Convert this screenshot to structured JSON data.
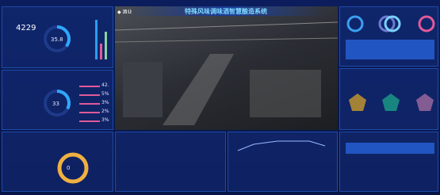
{
  "header": {
    "title": "特殊风味调味酒智慧酿造系统"
  },
  "left_top": {
    "kpi": "4229",
    "ring": 35.8
  },
  "left_mid": {
    "ring": 33,
    "list": [
      "42.",
      "5%",
      "3%",
      "2%",
      "3%"
    ]
  },
  "bottom_center": {
    "ring": "0"
  }
}
